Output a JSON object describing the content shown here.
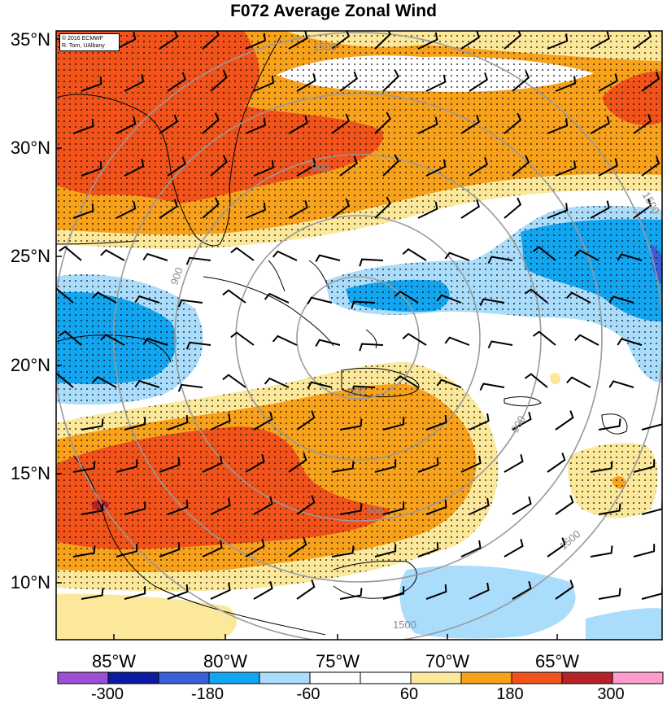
{
  "title": "F072 Average Zonal Wind",
  "credit": {
    "line1": "© 2016 ECMWF",
    "line2": "R. Torn, UAlbany"
  },
  "lat_labels": [
    "35°N",
    "30°N",
    "25°N",
    "20°N",
    "15°N",
    "10°N"
  ],
  "lon_labels": [
    "85°W",
    "80°W",
    "75°W",
    "70°W",
    "65°W"
  ],
  "colorbar": {
    "tick_labels": [
      "-300",
      "-180",
      "-60",
      "60",
      "180",
      "300"
    ],
    "colors": [
      "#9b4fd6",
      "#0b1aa0",
      "#3a5fd8",
      "#13a6f0",
      "#aadcfb",
      "#ffffff",
      "#ffffff",
      "#fbe89a",
      "#f8a21c",
      "#f1531b",
      "#b62227",
      "#ff9ccc"
    ]
  },
  "contour_labels": [
    "300",
    "900",
    "1500"
  ],
  "colors": {
    "strong_westerly": "#f1531b",
    "westerly": "#f8a21c",
    "weak_westerly": "#fbe89a",
    "weak_easterly": "#aadcfb",
    "easterly": "#13a6f0",
    "strong_easterly": "#3a5fd8",
    "contour": "#9a9a9a"
  }
}
